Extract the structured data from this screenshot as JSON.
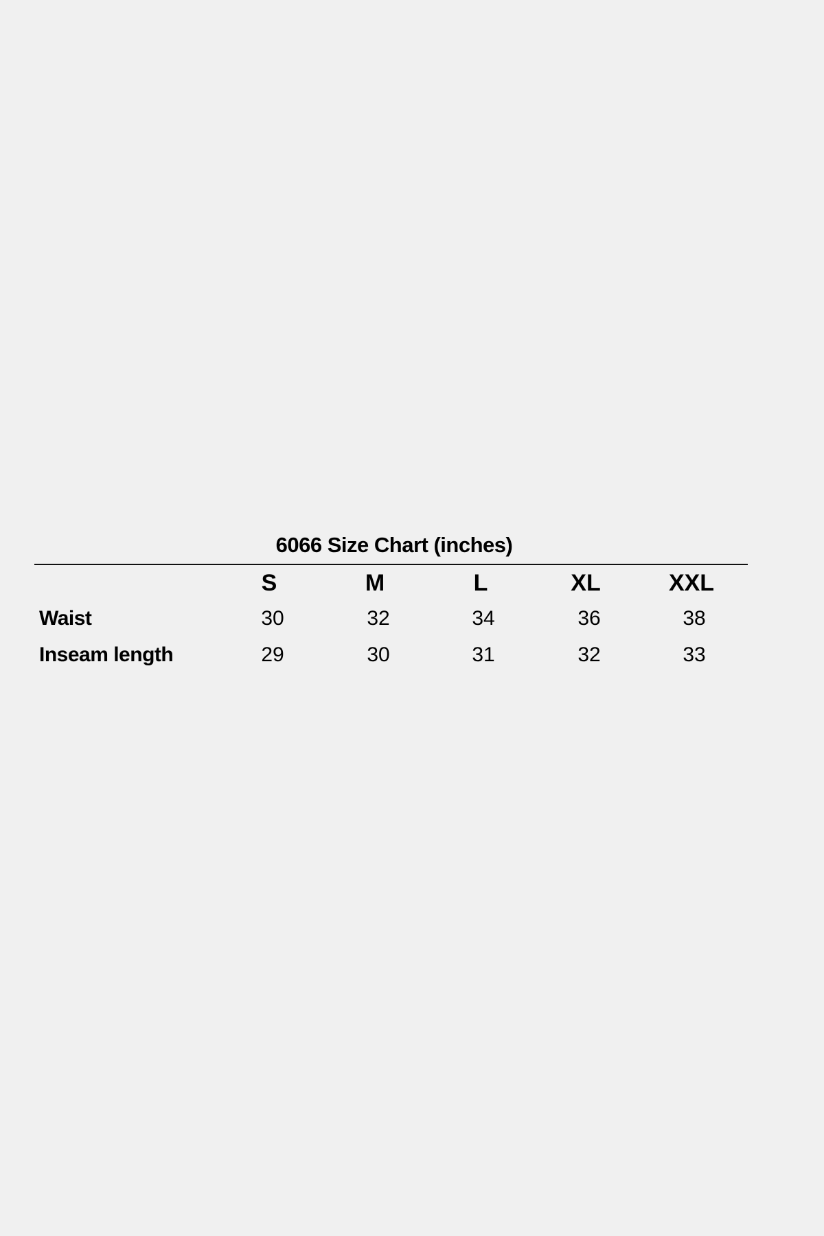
{
  "title": "6066 Size Chart (inches)",
  "columns": [
    "S",
    "M",
    "L",
    "XL",
    "XXL"
  ],
  "rows": [
    {
      "label": "Waist",
      "values": [
        "30",
        "32",
        "34",
        "36",
        "38"
      ]
    },
    {
      "label": "Inseam length",
      "values": [
        "29",
        "30",
        "31",
        "32",
        "33"
      ]
    }
  ]
}
